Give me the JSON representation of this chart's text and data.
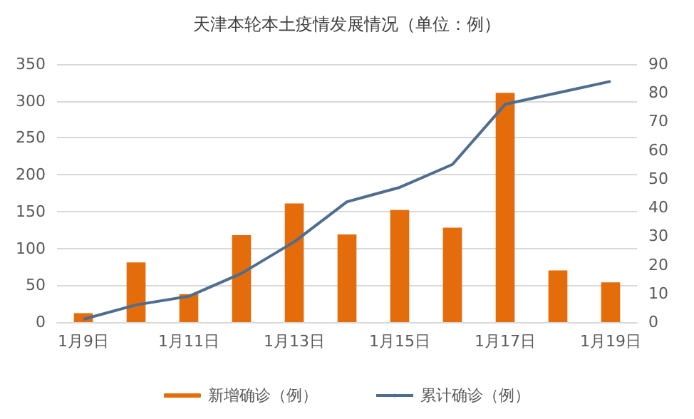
{
  "chart_data": {
    "type": "bar",
    "title": "天津本轮本土疫情发展情况（单位：例）",
    "categories": [
      "1月9日",
      null,
      "1月11日",
      null,
      "1月13日",
      null,
      "1月15日",
      null,
      "1月17日",
      null,
      "1月19日"
    ],
    "series": [
      {
        "name": "新增确诊（例）",
        "color": "#e46c0a",
        "values": [
          12,
          81,
          38,
          118,
          161,
          119,
          152,
          128,
          311,
          70,
          54
        ]
      },
      {
        "name": "累计确诊（例）",
        "type": "line",
        "axis": "y2",
        "color": "#4f6d8f",
        "values": [
          1,
          6,
          9,
          17,
          28,
          42,
          47,
          55,
          76,
          80,
          84
        ]
      }
    ],
    "ylim": [
      0,
      350
    ],
    "yticks": [
      0,
      50,
      100,
      150,
      200,
      250,
      300,
      350
    ],
    "y2lim": [
      0,
      90
    ],
    "y2ticks": [
      0,
      10,
      20,
      30,
      40,
      50,
      60,
      70,
      80,
      90
    ],
    "grid": "y",
    "legend": "bottom",
    "marker": "none",
    "line_style": "solid"
  }
}
